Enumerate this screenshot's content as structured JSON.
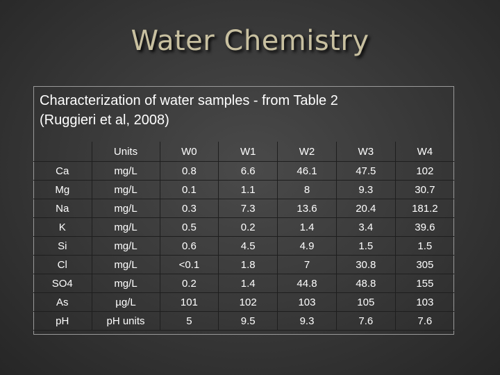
{
  "slide": {
    "title": "Water Chemistry",
    "caption_line1": "Characterization of water samples - from Table 2",
    "caption_line2": "(Ruggieri et al, 2008)"
  },
  "table": {
    "headers": [
      "",
      "Units",
      "W0",
      "W1",
      "W2",
      "W3",
      "W4"
    ],
    "rows": [
      {
        "element": "Ca",
        "units": "mg/L",
        "values": [
          "0.8",
          "6.6",
          "46.1",
          "47.5",
          "102"
        ]
      },
      {
        "element": "Mg",
        "units": "mg/L",
        "values": [
          "0.1",
          "1.1",
          "8",
          "9.3",
          "30.7"
        ]
      },
      {
        "element": "Na",
        "units": "mg/L",
        "values": [
          "0.3",
          "7.3",
          "13.6",
          "20.4",
          "181.2"
        ]
      },
      {
        "element": "K",
        "units": "mg/L",
        "values": [
          "0.5",
          "0.2",
          "1.4",
          "3.4",
          "39.6"
        ]
      },
      {
        "element": "Si",
        "units": "mg/L",
        "values": [
          "0.6",
          "4.5",
          "4.9",
          "1.5",
          "1.5"
        ]
      },
      {
        "element": "Cl",
        "units": "mg/L",
        "values": [
          "<0.1",
          "1.8",
          "7",
          "30.8",
          "305"
        ]
      },
      {
        "element": "SO4",
        "units": "mg/L",
        "values": [
          "0.2",
          "1.4",
          "44.8",
          "48.8",
          "155"
        ]
      },
      {
        "element": "As",
        "units": "µg/L",
        "values": [
          "101",
          "102",
          "103",
          "105",
          "103"
        ]
      },
      {
        "element": "pH",
        "units": "pH units",
        "values": [
          "5",
          "9.5",
          "9.3",
          "7.6",
          "7.6"
        ]
      }
    ]
  },
  "colors": {
    "title": "#c8c0a0",
    "text": "#ffffff",
    "background": "#3a3a3a"
  }
}
